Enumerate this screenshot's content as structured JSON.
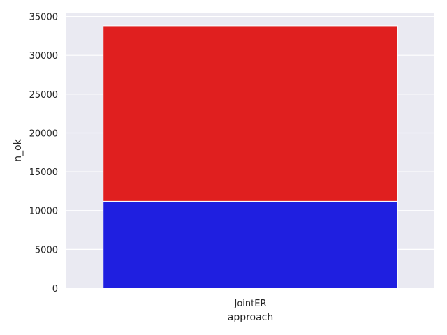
{
  "chart_data": {
    "type": "bar",
    "stacked": true,
    "categories": [
      "JointER"
    ],
    "series": [
      {
        "values": [
          11200
        ],
        "color": "#1f1fe0"
      },
      {
        "values": [
          22600
        ],
        "color": "#e01f1f"
      }
    ],
    "totals": [
      33800
    ],
    "xlabel": "approach",
    "ylabel": "n_ok",
    "ylim": [
      0,
      35500
    ],
    "yticks": [
      0,
      5000,
      10000,
      15000,
      20000,
      25000,
      30000,
      35000
    ],
    "grid": true,
    "legend": "none",
    "background": "#eaeaf2"
  }
}
